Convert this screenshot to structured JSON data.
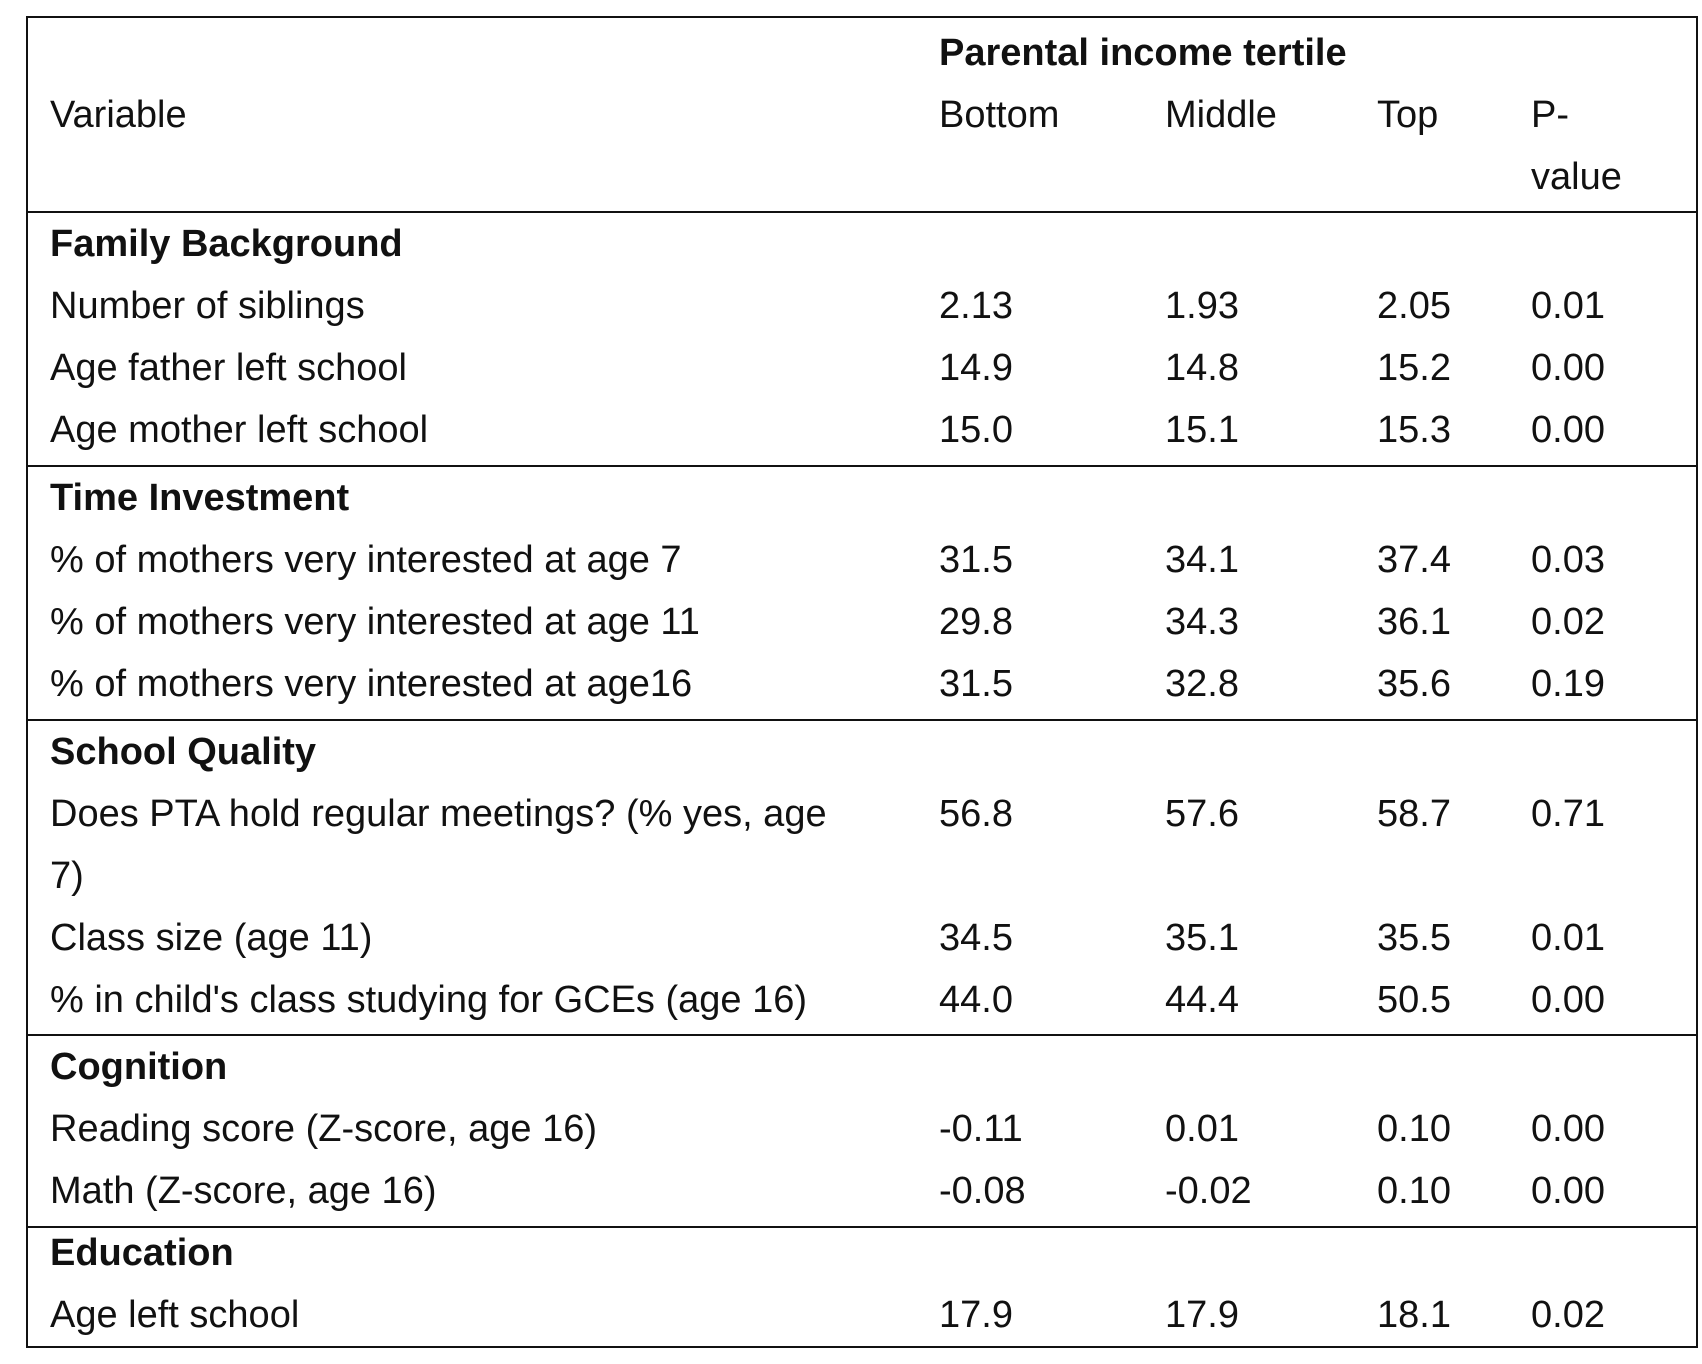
{
  "header": {
    "group_label": "Parental income tertile",
    "variable_label": "Variable",
    "columns": [
      "Bottom",
      "Middle",
      "Top"
    ],
    "pvalue_line1": "P-",
    "pvalue_line2": "value"
  },
  "sections": [
    {
      "title": "Family Background",
      "rows": [
        {
          "label": "Number of siblings",
          "values": [
            "2.13",
            "1.93",
            "2.05",
            "0.01"
          ]
        },
        {
          "label": "Age father left school",
          "values": [
            "14.9",
            "14.8",
            "15.2",
            "0.00"
          ]
        },
        {
          "label": "Age mother left school",
          "values": [
            "15.0",
            "15.1",
            "15.3",
            "0.00"
          ]
        }
      ]
    },
    {
      "title": "Time Investment",
      "rows": [
        {
          "label": "% of mothers very interested at age 7",
          "values": [
            "31.5",
            "34.1",
            "37.4",
            "0.03"
          ]
        },
        {
          "label": "% of mothers very interested at age 11",
          "values": [
            "29.8",
            "34.3",
            "36.1",
            "0.02"
          ]
        },
        {
          "label": "% of mothers very interested at age16",
          "values": [
            "31.5",
            "32.8",
            "35.6",
            "0.19"
          ]
        }
      ]
    },
    {
      "title": "School Quality",
      "rows": [
        {
          "label": "Does PTA hold regular meetings? (% yes, age",
          "label_cont": "7)",
          "values": [
            "56.8",
            "57.6",
            "58.7",
            "0.71"
          ]
        },
        {
          "label": "Class size (age 11)",
          "values": [
            "34.5",
            "35.1",
            "35.5",
            "0.01"
          ]
        },
        {
          "label": "% in child's class studying for GCEs (age 16)",
          "values": [
            "44.0",
            "44.4",
            "50.5",
            "0.00"
          ]
        }
      ]
    },
    {
      "title": "Cognition",
      "rows": [
        {
          "label": "Reading score (Z-score, age 16)",
          "values": [
            "-0.11",
            "0.01",
            "0.10",
            "0.00"
          ]
        },
        {
          "label": "Math (Z-score, age 16)",
          "values": [
            "-0.08",
            "-0.02",
            "0.10",
            "0.00"
          ]
        }
      ]
    },
    {
      "title": "Education",
      "rows": [
        {
          "label": "Age left school",
          "values": [
            "17.9",
            "17.9",
            "18.1",
            "0.02"
          ]
        }
      ]
    }
  ]
}
